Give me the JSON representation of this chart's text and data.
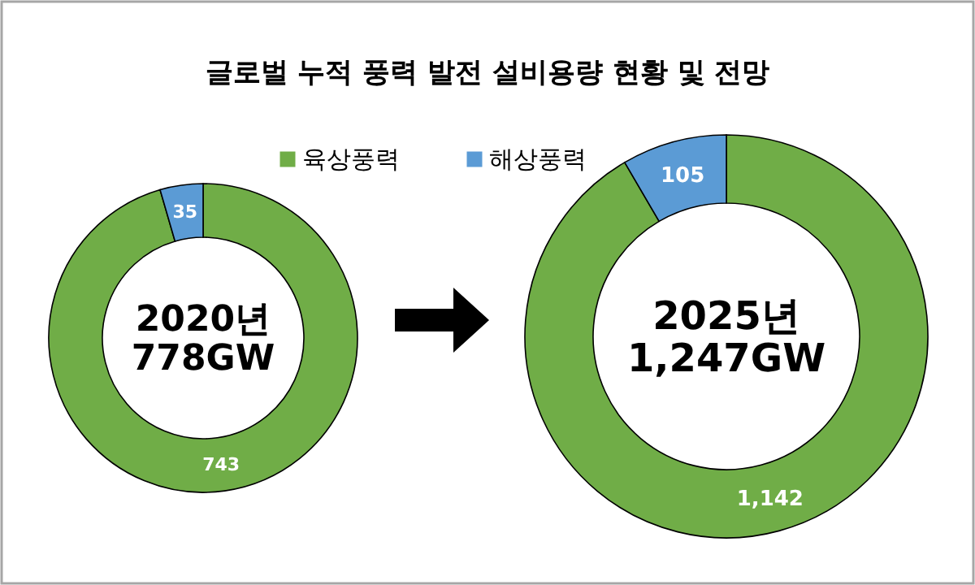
{
  "chart_data": [
    {
      "type": "donut",
      "title": "글로벌 누적 풍력 발전 설비용량 현황 및 전망",
      "categories": [
        null,
        null
      ],
      "values": [
        743,
        35
      ],
      "colors": [
        "#70ad47",
        "#5b9bd5"
      ],
      "value_labels": [
        "743",
        "35"
      ],
      "annotations": [
        "2020년",
        "778GW"
      ]
    },
    {
      "type": "donut",
      "categories": [
        "육상풍력",
        "해상풍력"
      ],
      "values": [
        1142,
        105
      ],
      "colors": [
        "#70ad47",
        "#5b9bd5"
      ],
      "value_labels": [
        "1,142",
        "105"
      ],
      "legend": "top",
      "annotations": [
        "2025년",
        "1,247GW"
      ]
    }
  ]
}
